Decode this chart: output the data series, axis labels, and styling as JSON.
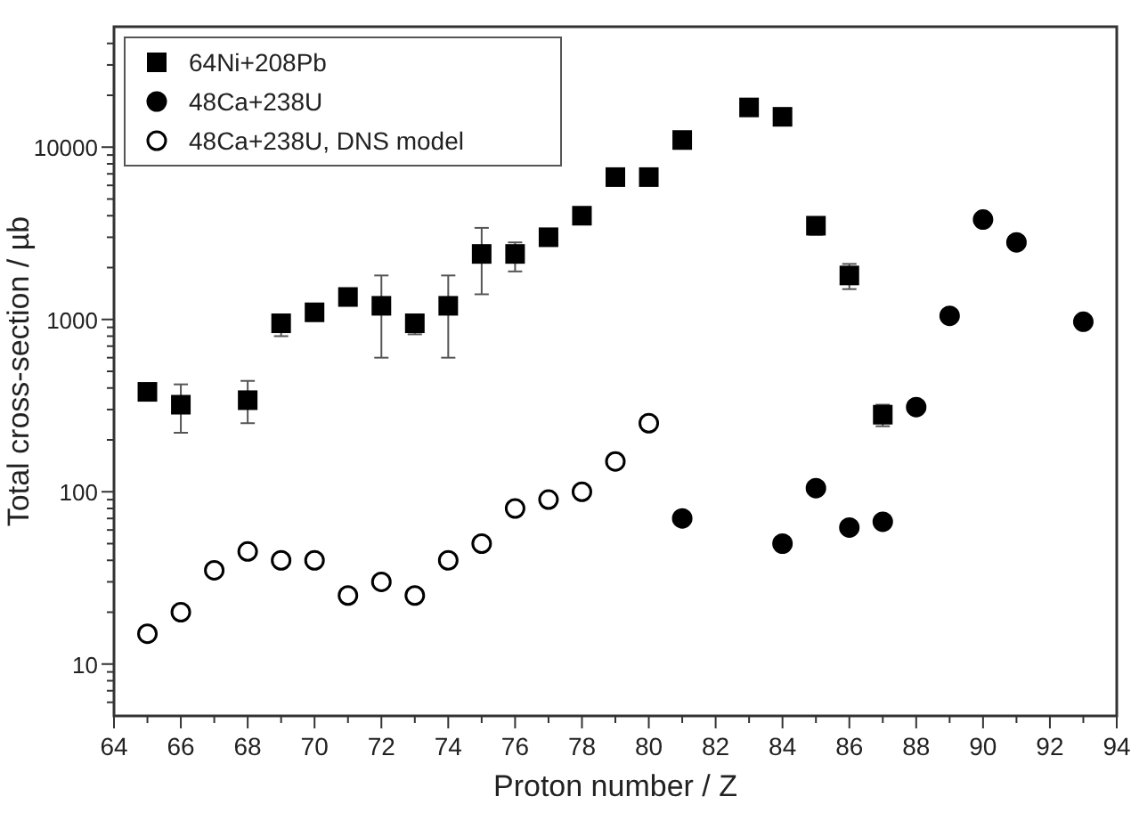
{
  "chart_data": {
    "type": "scatter",
    "xlabel": "Proton number / Z",
    "ylabel": "Total cross-section / µb",
    "log": "y",
    "legend": "top left",
    "grid": false,
    "xlim": [
      64,
      94
    ],
    "ylim": [
      5,
      50000
    ],
    "xticks": [
      64,
      {
        "value": 65,
        "label": null
      },
      66,
      {
        "value": 67,
        "label": null
      },
      68,
      {
        "value": 69,
        "label": null
      },
      70,
      {
        "value": 71,
        "label": null
      },
      72,
      {
        "value": 73,
        "label": null
      },
      74,
      {
        "value": 75,
        "label": null
      },
      76,
      {
        "value": 77,
        "label": null
      },
      78,
      {
        "value": 79,
        "label": null
      },
      80,
      {
        "value": 81,
        "label": null
      },
      82,
      {
        "value": 83,
        "label": null
      },
      84,
      {
        "value": 85,
        "label": null
      },
      86,
      {
        "value": 87,
        "label": null
      },
      88,
      {
        "value": 89,
        "label": null
      },
      90,
      {
        "value": 91,
        "label": null
      },
      92,
      {
        "value": 93,
        "label": null
      },
      94
    ],
    "yticks": [
      {
        "value": 6,
        "label": null
      },
      {
        "value": 7,
        "label": null
      },
      {
        "value": 8,
        "label": null
      },
      {
        "value": 9,
        "label": null
      },
      10,
      {
        "value": 20,
        "label": null
      },
      {
        "value": 30,
        "label": null
      },
      {
        "value": 40,
        "label": null
      },
      {
        "value": 50,
        "label": null
      },
      {
        "value": 60,
        "label": null
      },
      {
        "value": 70,
        "label": null
      },
      {
        "value": 80,
        "label": null
      },
      {
        "value": 90,
        "label": null
      },
      100,
      {
        "value": 200,
        "label": null
      },
      {
        "value": 300,
        "label": null
      },
      {
        "value": 400,
        "label": null
      },
      {
        "value": 500,
        "label": null
      },
      {
        "value": 600,
        "label": null
      },
      {
        "value": 700,
        "label": null
      },
      {
        "value": 800,
        "label": null
      },
      {
        "value": 900,
        "label": null
      },
      1000,
      {
        "value": 2000,
        "label": null
      },
      {
        "value": 3000,
        "label": null
      },
      {
        "value": 4000,
        "label": null
      },
      {
        "value": 5000,
        "label": null
      },
      {
        "value": 6000,
        "label": null
      },
      {
        "value": 7000,
        "label": null
      },
      {
        "value": 8000,
        "label": null
      },
      {
        "value": 9000,
        "label": null
      },
      10000,
      {
        "value": 20000,
        "label": null
      },
      {
        "value": 30000,
        "label": null
      },
      {
        "value": 40000,
        "label": null
      }
    ],
    "series": [
      {
        "name": "64Ni+208Pb",
        "color": "#000000",
        "marker": "square",
        "x": [
          65,
          66,
          68,
          69,
          70,
          71,
          72,
          73,
          74,
          75,
          76,
          77,
          78,
          79,
          80,
          81,
          83,
          84,
          85,
          86,
          87
        ],
        "values": [
          380,
          320,
          340,
          950,
          1100,
          1350,
          1200,
          950,
          1200,
          2400,
          2400,
          3000,
          4000,
          6700,
          6700,
          11000,
          17000,
          15000,
          3500,
          1800,
          280
        ],
        "errors": [
          null,
          [
            220,
            420
          ],
          [
            250,
            440
          ],
          [
            800,
            1050
          ],
          null,
          null,
          [
            600,
            1800
          ],
          [
            820,
            1050
          ],
          [
            600,
            1800
          ],
          [
            1400,
            3400
          ],
          [
            1900,
            2800
          ],
          [
            3000,
            3300
          ],
          null,
          [
            6000,
            7300
          ],
          null,
          null,
          null,
          null,
          [
            3100,
            3900
          ],
          [
            1500,
            2100
          ],
          [
            240,
            320
          ]
        ]
      },
      {
        "name": "48Ca+238U",
        "color": "#000000",
        "marker": "circle",
        "x": [
          81,
          84,
          85,
          86,
          87,
          88,
          89,
          90,
          91,
          93
        ],
        "values": [
          70,
          50,
          105,
          62,
          67,
          310,
          1050,
          3800,
          2800,
          970
        ]
      },
      {
        "name": "48Ca+238U, DNS model",
        "color": "#ffffff",
        "marker": "circle",
        "x": [
          65,
          66,
          67,
          68,
          69,
          70,
          71,
          72,
          73,
          74,
          75,
          76,
          77,
          78,
          79,
          80
        ],
        "values": [
          15,
          20,
          35,
          45,
          40,
          40,
          25,
          30,
          25,
          40,
          50,
          80,
          90,
          100,
          150,
          250
        ]
      }
    ]
  }
}
